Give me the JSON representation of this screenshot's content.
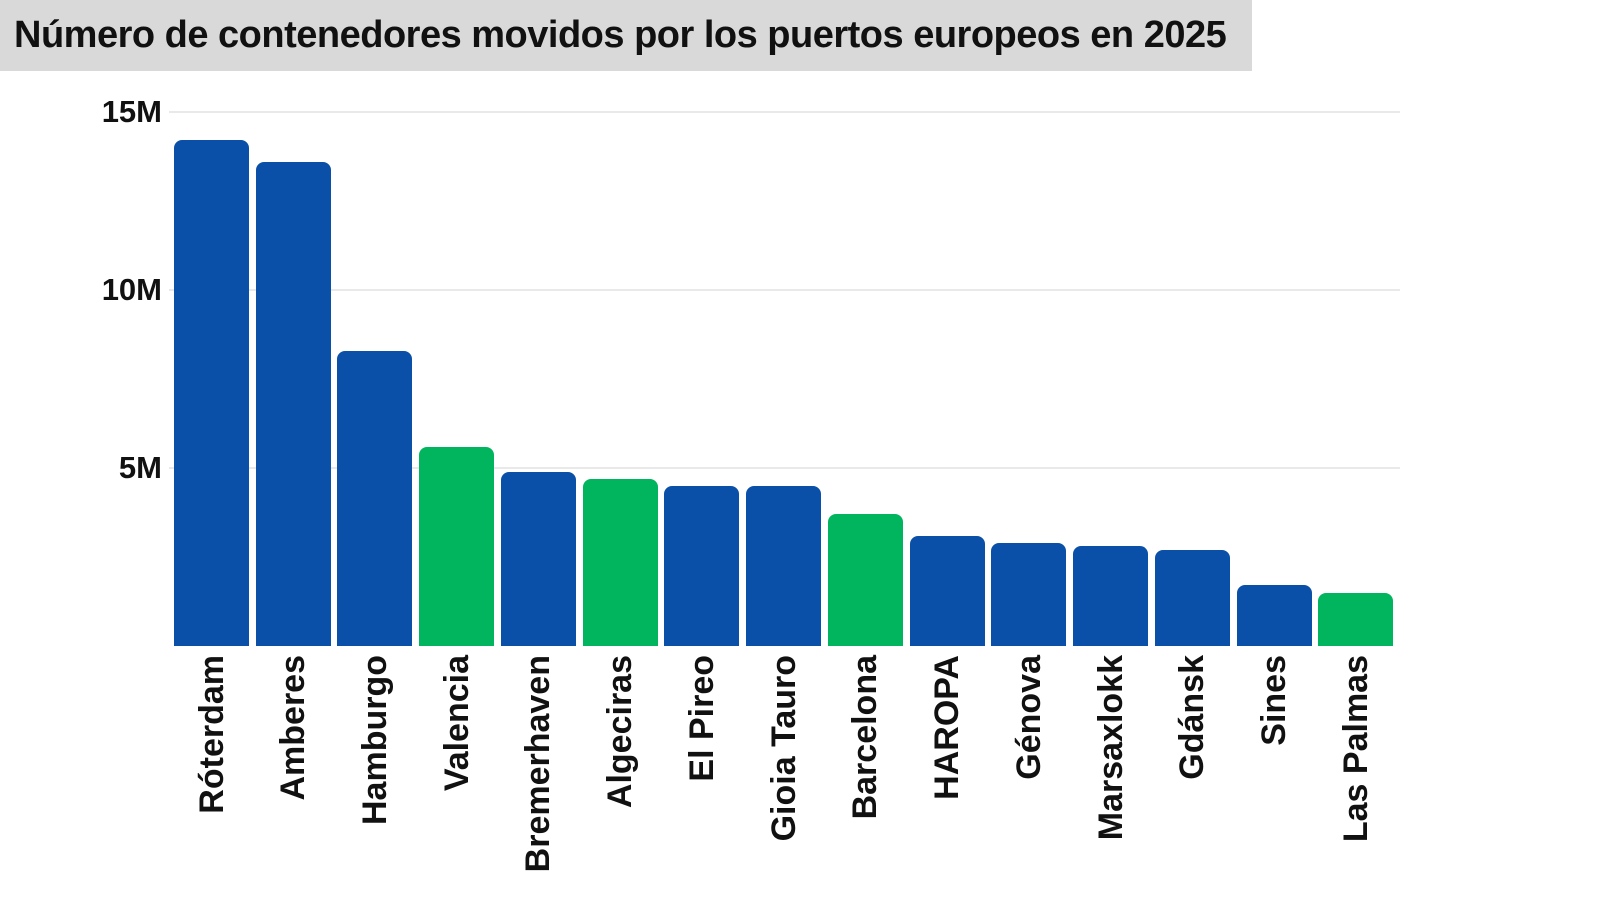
{
  "title": "Número de contenedores movidos por los puertos europeos en 2025",
  "colors": {
    "blue": "#0b50a8",
    "green": "#00b55e",
    "banner_bg": "#d9d9d9",
    "grid_line": "#e9e9e9",
    "text": "#111111"
  },
  "chart_data": {
    "type": "bar",
    "title": "Número de contenedores movidos por los puertos europeos en 2025",
    "xlabel": "",
    "ylabel": "",
    "unit": "M",
    "ylim": [
      0,
      15
    ],
    "grid": "horizontal",
    "legend": "none",
    "yticks": [
      {
        "value": 15,
        "label": "15M"
      },
      {
        "value": 10,
        "label": "10M"
      },
      {
        "value": 5,
        "label": "5M"
      }
    ],
    "categories": [
      "Róterdam",
      "Amberes",
      "Hamburgo",
      "Valencia",
      "Bremerhaven",
      "Algeciras",
      "El Pireo",
      "Gioia Tauro",
      "Barcelona",
      "HAROPA",
      "Génova",
      "Marsaxlokk",
      "Gdánsk",
      "Sines",
      "Las Palmas"
    ],
    "values": [
      14.2,
      13.6,
      8.3,
      5.6,
      4.9,
      4.7,
      4.5,
      4.5,
      3.7,
      3.1,
      2.9,
      2.8,
      2.7,
      1.7,
      1.5
    ],
    "bars": [
      {
        "label": "Róterdam",
        "value": 14.2,
        "color": "blue"
      },
      {
        "label": "Amberes",
        "value": 13.6,
        "color": "blue"
      },
      {
        "label": "Hamburgo",
        "value": 8.3,
        "color": "blue"
      },
      {
        "label": "Valencia",
        "value": 5.6,
        "color": "green"
      },
      {
        "label": "Bremerhaven",
        "value": 4.9,
        "color": "blue"
      },
      {
        "label": "Algeciras",
        "value": 4.7,
        "color": "green"
      },
      {
        "label": "El Pireo",
        "value": 4.5,
        "color": "blue"
      },
      {
        "label": "Gioia Tauro",
        "value": 4.5,
        "color": "blue"
      },
      {
        "label": "Barcelona",
        "value": 3.7,
        "color": "green"
      },
      {
        "label": "HAROPA",
        "value": 3.1,
        "color": "blue"
      },
      {
        "label": "Génova",
        "value": 2.9,
        "color": "blue"
      },
      {
        "label": "Marsaxlokk",
        "value": 2.8,
        "color": "blue"
      },
      {
        "label": "Gdánsk",
        "value": 2.7,
        "color": "blue"
      },
      {
        "label": "Sines",
        "value": 1.7,
        "color": "blue"
      },
      {
        "label": "Las Palmas",
        "value": 1.5,
        "color": "green"
      }
    ]
  }
}
